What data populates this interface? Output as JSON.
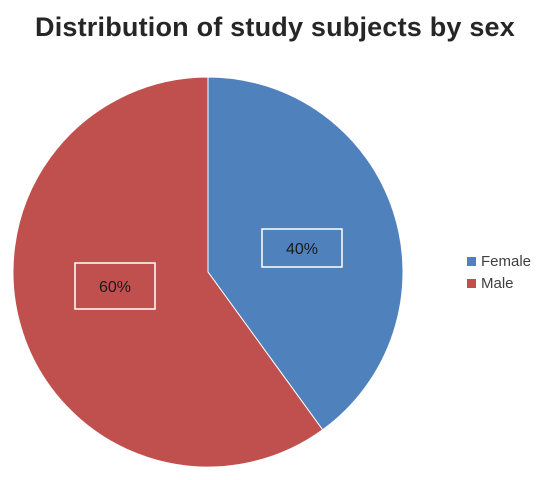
{
  "chart_data": {
    "type": "pie",
    "title": "Distribution of study subjects by sex",
    "categories": [
      "Female",
      "Male"
    ],
    "values": [
      40,
      60
    ],
    "data_labels": [
      "40%",
      "60%"
    ],
    "colors": [
      "#4f81bd",
      "#c0504d"
    ],
    "legend": "right",
    "start_angle": "12 o'clock, clockwise"
  }
}
